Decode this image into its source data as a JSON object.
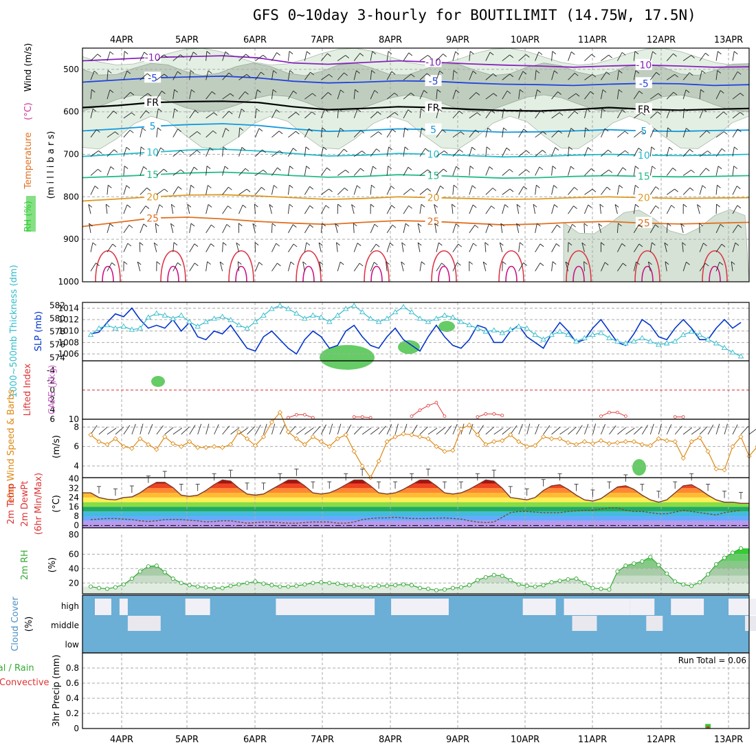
{
  "title": "GFS 0~10day 3-hourly for BOUTILIMIT (14.75W, 17.5N)",
  "dates": [
    "4APR",
    "5APR",
    "6APR",
    "7APR",
    "8APR",
    "9APR",
    "10APR",
    "11APR",
    "12APR",
    "13APR"
  ],
  "colors": {
    "frame": "#000000",
    "grid": "#aaaaaa",
    "cloud_bg": "#6baed6",
    "cloud_fill": "#f2f0f7",
    "rh_fill": "#33cc33",
    "slp": "#0033cc",
    "thick": "#33bbcc",
    "li": "#dd3333",
    "wind": "#dd8811"
  },
  "chart_data": [
    {
      "type": "contour",
      "name": "upper-air",
      "ylabel_parts": [
        {
          "text": "RH (%)",
          "color": "#33cc33"
        },
        {
          "text": "Temperature",
          "color": "#e07020"
        },
        {
          "text": "(°C)",
          "color": "#cc3399"
        },
        {
          "text": "Wind (m/s)",
          "color": "#000000"
        }
      ],
      "ylabel_right": "(m i l l i b a r s)",
      "y_ticks": [
        "500",
        "600",
        "700",
        "800",
        "900",
        "1000"
      ],
      "ylim": [
        1000,
        450
      ],
      "isotherms": [
        {
          "value": -10,
          "label": "-10",
          "color": "#8822bb",
          "p": [
            480,
            476,
            472,
            470,
            468,
            473,
            485,
            488,
            484,
            480,
            483,
            487,
            490,
            492,
            495,
            492,
            490,
            492,
            495,
            494
          ]
        },
        {
          "value": -5,
          "label": "-5",
          "color": "#2244dd",
          "p": [
            530,
            525,
            520,
            518,
            516,
            520,
            528,
            532,
            530,
            527,
            528,
            532,
            535,
            536,
            538,
            535,
            533,
            534,
            538,
            536
          ]
        },
        {
          "value": 0,
          "label": "FR",
          "color": "#000000",
          "p": [
            590,
            585,
            578,
            576,
            575,
            578,
            588,
            595,
            592,
            588,
            590,
            594,
            597,
            598,
            595,
            590,
            594,
            596,
            594,
            592
          ]
        },
        {
          "value": 5,
          "label": "5",
          "color": "#1199dd",
          "p": [
            645,
            640,
            634,
            630,
            628,
            632,
            640,
            646,
            644,
            640,
            642,
            645,
            648,
            647,
            645,
            642,
            645,
            646,
            644,
            643
          ]
        },
        {
          "value": 10,
          "label": "10",
          "color": "#22bbcc",
          "p": [
            705,
            700,
            695,
            690,
            688,
            692,
            698,
            704,
            702,
            698,
            700,
            703,
            706,
            705,
            702,
            700,
            702,
            703,
            702,
            700
          ]
        },
        {
          "value": 15,
          "label": "15",
          "color": "#22bb88",
          "p": [
            755,
            752,
            748,
            744,
            742,
            745,
            750,
            754,
            752,
            748,
            750,
            753,
            756,
            755,
            752,
            750,
            752,
            753,
            752,
            750
          ]
        },
        {
          "value": 20,
          "label": "20",
          "color": "#dd9922",
          "p": [
            810,
            805,
            800,
            796,
            795,
            798,
            802,
            806,
            804,
            800,
            802,
            804,
            806,
            805,
            802,
            800,
            802,
            804,
            803,
            802
          ]
        },
        {
          "value": 25,
          "label": "25",
          "color": "#e07020",
          "p": [
            870,
            860,
            850,
            848,
            852,
            858,
            862,
            865,
            860,
            856,
            858,
            862,
            866,
            864,
            860,
            858,
            862,
            864,
            862,
            860
          ]
        }
      ]
    },
    {
      "type": "line",
      "name": "slp-thickness",
      "ylabel_left": "1000~500mb Thickness (dm)",
      "ylabel_right": "SLP (mb)",
      "y_ticks_left": [
        "582",
        "580",
        "578",
        "576",
        "574"
      ],
      "y_ticks_right": [
        "1014",
        "1012",
        "1010",
        "1008",
        "1006"
      ],
      "series": [
        {
          "name": "SLP",
          "color": "#0033cc",
          "values": [
            1009.5,
            1009.8,
            1011.5,
            1013,
            1012.5,
            1014,
            1012,
            1010.5,
            1011,
            1010.5,
            1012,
            1010,
            1011.5,
            1009,
            1008.5,
            1010,
            1009.5,
            1011,
            1009,
            1007,
            1006.5,
            1009,
            1010,
            1008.5,
            1007,
            1006,
            1008.5,
            1010,
            1009,
            1007,
            1007.5,
            1010,
            1011,
            1009,
            1007.5,
            1007,
            1009,
            1010.5,
            1008.5,
            1007.5,
            1006.5,
            1009,
            1011,
            1009,
            1007.5,
            1007,
            1008.5,
            1011,
            1010.5,
            1008,
            1008,
            1010,
            1011,
            1009,
            1008,
            1007,
            1009.5,
            1011.5,
            1010,
            1008,
            1008.5,
            1010.5,
            1012,
            1010,
            1008,
            1007.5,
            1009.5,
            1012,
            1011,
            1009,
            1008.5,
            1010.5,
            1012,
            1010.5,
            1008.5,
            1008.5,
            1010.5,
            1012,
            1010.5,
            1011.5
          ]
        },
        {
          "name": "Thickness",
          "color": "#33bbcc",
          "values": [
            577.5,
            578.5,
            579,
            578.5,
            578.8,
            578.3,
            578.5,
            580.2,
            580.8,
            580.5,
            580,
            580.5,
            579.5,
            578.8,
            579.5,
            580,
            580.3,
            579.8,
            579,
            578.5,
            579.5,
            580.5,
            581.5,
            582,
            581.5,
            580.8,
            580,
            580.5,
            580.2,
            579.5,
            580.5,
            581.5,
            582,
            581,
            580,
            579.5,
            580,
            581,
            581.8,
            581,
            580,
            579.5,
            580,
            580.5,
            580.2,
            579.5,
            579,
            578.5,
            578,
            578.2,
            577.8,
            578.3,
            578.8,
            578.5,
            577.5,
            576.8,
            577.5,
            578,
            577.5,
            576.5,
            577,
            577.5,
            577.8,
            577,
            576.5,
            576.2,
            576.5,
            577,
            576.5,
            576,
            576.2,
            576.5,
            577.5,
            578,
            577.5,
            576.8,
            576.2,
            575.5,
            574.8,
            574.2
          ]
        }
      ]
    },
    {
      "type": "line",
      "name": "cape-li",
      "ylabel_left": "Lifted Index",
      "ylabel_right": "CAPE (J/kg)",
      "y_ticks_left": [
        "-4",
        "-2",
        "0",
        "2",
        "4",
        "6"
      ],
      "y_ticks_right": [
        "10"
      ],
      "series": [
        {
          "name": "CAPE",
          "color": "#dd3333",
          "segments": [
            {
              "x0": 24,
              "values": [
                2,
                6,
                6,
                2
              ]
            },
            {
              "x0": 32,
              "values": [
                3,
                3,
                2
              ]
            },
            {
              "x0": 39,
              "values": [
                4,
                12,
                18,
                22,
                4
              ]
            },
            {
              "x0": 47,
              "values": [
                3,
                7,
                7,
                5
              ]
            },
            {
              "x0": 62,
              "values": [
                4,
                9,
                9,
                4
              ]
            },
            {
              "x0": 71,
              "values": [
                3,
                3
              ]
            }
          ]
        }
      ]
    },
    {
      "type": "line",
      "name": "10m-wind",
      "ylabel_left": "10m Wind Speed & Barbs",
      "ylabel_right": "(m/s)",
      "y_ticks": [
        "8",
        "6",
        "4"
      ],
      "ylim": [
        2.8,
        8.8
      ],
      "series": [
        {
          "name": "10m Wind Speed",
          "color": "#dd8811",
          "values": [
            7.2,
            6.5,
            6.2,
            6.8,
            6.0,
            5.8,
            6.8,
            6.2,
            5.7,
            7.0,
            6.3,
            6.0,
            6.5,
            5.9,
            5.9,
            6.0,
            5.9,
            6.2,
            7.5,
            6.8,
            6.1,
            7.0,
            8.5,
            9.5,
            7.5,
            6.8,
            6.2,
            7.0,
            6.5,
            6.0,
            6.8,
            7.2,
            5.5,
            4.0,
            2.8,
            4.5,
            6.5,
            7.0,
            7.3,
            7.2,
            7.0,
            6.8,
            6.0,
            5.5,
            5.6,
            7.8,
            8.2,
            7.2,
            6.2,
            6.5,
            6.6,
            7.2,
            6.5,
            6.0,
            6.1,
            7.0,
            6.8,
            6.8,
            6.4,
            6.2,
            6.5,
            6.3,
            6.6,
            6.3,
            6.4,
            6.5,
            6.5,
            6.2,
            6.1,
            6.8,
            6.6,
            6.5,
            4.8,
            6.5,
            6.9,
            5.5,
            3.7,
            3.6,
            6.0,
            7.0,
            5.0,
            6.0
          ]
        }
      ]
    },
    {
      "type": "area",
      "name": "2m-temp",
      "ylabel_left": "2m Temp 2m DewPt (6hr Min/Max)",
      "ylabel_right": "(°C)",
      "y_ticks": [
        "40",
        "32",
        "24",
        "16",
        "8",
        "0"
      ],
      "ylim": [
        -2,
        41
      ],
      "series": [
        {
          "name": "2m Temp",
          "color": "#7a3a2a",
          "values": [
            28,
            24,
            22.5,
            22,
            24,
            24.5,
            28,
            33,
            37,
            37,
            32.5,
            26,
            25,
            26,
            30,
            35,
            39,
            38,
            32,
            27,
            26,
            27,
            31,
            35,
            39,
            39,
            34,
            28,
            27,
            28,
            31,
            35,
            39,
            39,
            34,
            28,
            27,
            28,
            31,
            35,
            39,
            39,
            34,
            28,
            27,
            28,
            31,
            35,
            39,
            38,
            32,
            24,
            23,
            22,
            24,
            30,
            34,
            35,
            31,
            26,
            22,
            21,
            23,
            28,
            33,
            34,
            31,
            26,
            22,
            20,
            22,
            28,
            34,
            35,
            31,
            26,
            22,
            20,
            20,
            19
          ]
        },
        {
          "name": "2m DewPt",
          "color": "#7a4a2a",
          "values": [
            5,
            5.5,
            6,
            6,
            5.5,
            5,
            4,
            3.5,
            4,
            5,
            5.2,
            5,
            4.5,
            4,
            3,
            3.5,
            4,
            4,
            3,
            2,
            2.5,
            3,
            3,
            2.5,
            2,
            2,
            2.5,
            3,
            3,
            3,
            2,
            2,
            3,
            5,
            6,
            6.5,
            6.5,
            7,
            6.5,
            6,
            6,
            6,
            6.2,
            6.5,
            6,
            5.5,
            4,
            3,
            2.5,
            3,
            7,
            11,
            12,
            12,
            11.5,
            11,
            11,
            11,
            12,
            12.5,
            13,
            13,
            14,
            15,
            15,
            13,
            12,
            12,
            11,
            10,
            10,
            11.5,
            13,
            12,
            11,
            10,
            9,
            11,
            12,
            13
          ]
        }
      ]
    },
    {
      "type": "area",
      "name": "2m-rh",
      "ylabel_left": "2m RH",
      "ylabel_right": "(%)",
      "y_ticks": [
        "80",
        "60",
        "40",
        "20"
      ],
      "ylim": [
        5,
        87
      ],
      "series": [
        {
          "name": "2m RH",
          "color": "#33aa33",
          "values": [
            15,
            13,
            12,
            14,
            18,
            26,
            36,
            43,
            44,
            35,
            26,
            20,
            17,
            15,
            14,
            13,
            13,
            16,
            18,
            20,
            22,
            19,
            17,
            15,
            15,
            16,
            18,
            20,
            21,
            20,
            19,
            17,
            16,
            15,
            14,
            16,
            16,
            17,
            18,
            17,
            13,
            12,
            10,
            11,
            13,
            14,
            17,
            24,
            28,
            31,
            30,
            24,
            18,
            16,
            15,
            17,
            21,
            23,
            25,
            26,
            20,
            13,
            12,
            11,
            36,
            44,
            47,
            50,
            56,
            45,
            33,
            22,
            18,
            16,
            21,
            32,
            46,
            55,
            62,
            68
          ]
        }
      ]
    },
    {
      "type": "heatmap",
      "name": "cloud-cover",
      "ylabel_left": "Cloud Cover",
      "ylabel_right": "(%)",
      "rows": [
        "high",
        "middle",
        "low"
      ],
      "high_blocks": [
        [
          1,
          3
        ],
        [
          4,
          5
        ],
        [
          12,
          15
        ],
        [
          23,
          35
        ],
        [
          37,
          44
        ],
        [
          53,
          57
        ],
        [
          58,
          61
        ],
        [
          61,
          66
        ],
        [
          66,
          69
        ],
        [
          71,
          75
        ],
        [
          78,
          90
        ]
      ],
      "mid_blocks": [
        [
          5,
          9
        ],
        [
          59,
          62
        ],
        [
          68,
          70
        ],
        [
          80,
          95
        ]
      ]
    },
    {
      "type": "bar",
      "name": "precip",
      "ylabel_left": "Total / Rain Convective",
      "ylabel_right": "3hr Precip (mm)",
      "y_ticks": [
        "0.8",
        "0.6",
        "0.4",
        "0.2",
        "0"
      ],
      "ylim": [
        0,
        1.0
      ],
      "run_total_label": "Run Total = 0.06",
      "bars": [
        {
          "index": 75,
          "total": 0.06,
          "convective": 0.03
        }
      ]
    }
  ]
}
